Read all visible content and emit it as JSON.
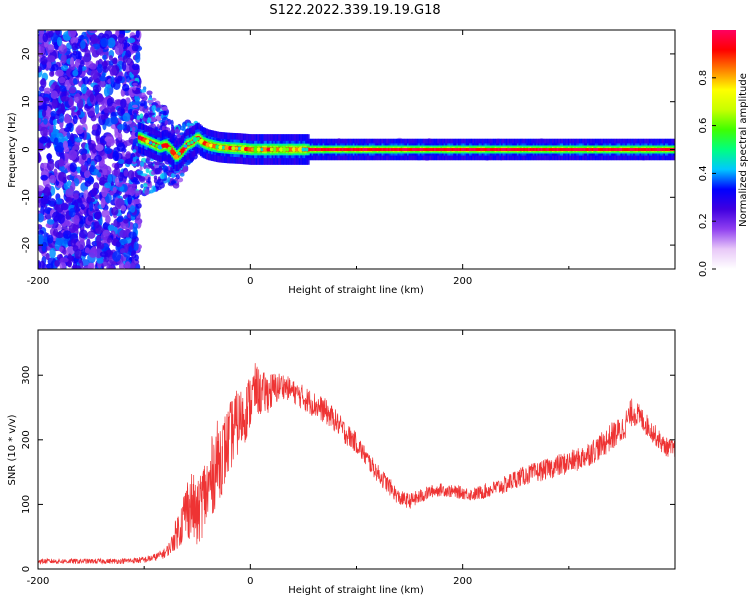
{
  "figure": {
    "title": "S122.2022.339.19.19.G18"
  },
  "chart_data": [
    {
      "type": "heatmap",
      "xlabel": "Height of straight line (km)",
      "ylabel": "Frequency (Hz)",
      "xlim": [
        -200,
        400
      ],
      "ylim": [
        -25,
        25
      ],
      "xticks": [
        -200,
        0,
        200
      ],
      "yticks": [
        -20,
        -10,
        0,
        10,
        20
      ],
      "colorbar": {
        "label": "Normalized spectral amplitude",
        "range": [
          0,
          1
        ],
        "ticks": [
          0.0,
          0.2,
          0.4,
          0.6,
          0.8
        ],
        "colormap": [
          "#ffffff",
          "#e8c8f8",
          "#9040f0",
          "#4000e0",
          "#0000ff",
          "#00c8ff",
          "#00ff80",
          "#40ff00",
          "#c8ff00",
          "#ffff00",
          "#ff8000",
          "#ff0000",
          "#ff0060"
        ]
      },
      "ridge": {
        "x": [
          -105,
          -95,
          -85,
          -80,
          -75,
          -70,
          -65,
          -60,
          -55,
          -50,
          -45,
          -40,
          -30,
          -20,
          -10,
          0,
          20,
          40,
          52,
          100,
          200,
          300,
          400
        ],
        "y": [
          2.5,
          1.5,
          0.5,
          1.0,
          0.0,
          -1.5,
          -0.5,
          1.0,
          1.5,
          2.5,
          1.5,
          1.0,
          0.5,
          0.3,
          0.2,
          0.0,
          0.0,
          0.0,
          0.0,
          0.0,
          0.0,
          0.0,
          0.0
        ]
      }
    },
    {
      "type": "line",
      "xlabel": "Height of straight line (km)",
      "ylabel": "SNR (10 * v/v)",
      "xlim": [
        -200,
        400
      ],
      "ylim": [
        0,
        370
      ],
      "xticks": [
        -200,
        0,
        200
      ],
      "yticks": [
        0,
        100,
        200,
        300
      ],
      "series": [
        {
          "color": "#ee3333",
          "x": [
            -200,
            -175,
            -150,
            -125,
            -100,
            -90,
            -80,
            -75,
            -70,
            -65,
            -60,
            -55,
            -50,
            -45,
            -40,
            -35,
            -30,
            -25,
            -20,
            -15,
            -10,
            -5,
            0,
            5,
            10,
            20,
            30,
            40,
            50,
            60,
            70,
            80,
            90,
            100,
            110,
            120,
            130,
            140,
            150,
            160,
            170,
            180,
            190,
            200,
            210,
            220,
            230,
            240,
            250,
            260,
            270,
            280,
            290,
            300,
            310,
            320,
            330,
            340,
            350,
            360,
            370,
            380,
            390,
            400
          ],
          "y": [
            12,
            12,
            12,
            12,
            14,
            18,
            25,
            35,
            55,
            70,
            95,
            100,
            80,
            110,
            120,
            150,
            170,
            180,
            200,
            220,
            230,
            240,
            260,
            280,
            270,
            275,
            285,
            275,
            265,
            255,
            245,
            230,
            210,
            195,
            170,
            148,
            130,
            110,
            105,
            112,
            120,
            123,
            120,
            118,
            115,
            120,
            125,
            130,
            140,
            145,
            150,
            155,
            160,
            165,
            170,
            180,
            190,
            205,
            215,
            245,
            230,
            210,
            190,
            185
          ],
          "noise": [
            4,
            4,
            4,
            4,
            5,
            6,
            8,
            12,
            25,
            35,
            50,
            55,
            50,
            60,
            60,
            65,
            65,
            60,
            55,
            55,
            50,
            45,
            45,
            40,
            35,
            30,
            20,
            18,
            20,
            20,
            20,
            18,
            18,
            16,
            15,
            14,
            14,
            12,
            12,
            12,
            10,
            10,
            10,
            10,
            10,
            12,
            12,
            14,
            15,
            15,
            16,
            16,
            18,
            18,
            18,
            20,
            20,
            22,
            22,
            22,
            18,
            16,
            15,
            15
          ]
        }
      ]
    }
  ]
}
